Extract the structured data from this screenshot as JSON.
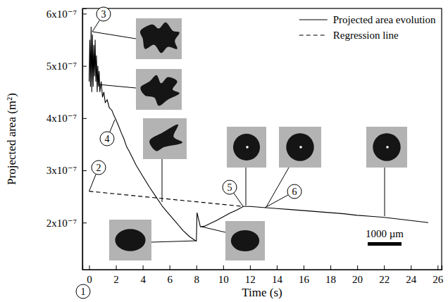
{
  "chart_data": {
    "type": "line",
    "x_label": "Time (s)",
    "y_label": "Projected area (m²)",
    "xlim": [
      -0.5,
      26.3
    ],
    "ylim": [
      1.1e-07,
      6.1e-07
    ],
    "xticks": [
      0,
      2,
      4,
      6,
      8,
      10,
      12,
      14,
      16,
      18,
      20,
      22,
      24,
      26
    ],
    "yticks": [
      {
        "value": 2e-07,
        "label": "2x10⁻⁷"
      },
      {
        "value": 3e-07,
        "label": "3x10⁻⁷"
      },
      {
        "value": 4e-07,
        "label": "4x10⁻⁷"
      },
      {
        "value": 5e-07,
        "label": "5x10⁻⁷"
      },
      {
        "value": 6e-07,
        "label": "6x10⁻⁷"
      }
    ],
    "legend": "top-right",
    "series": [
      {
        "name": "Projected area evolution",
        "color": "#000000",
        "line_style": "solid",
        "x": [
          0,
          0.05,
          0.1,
          0.15,
          0.2,
          0.25,
          0.3,
          0.35,
          0.4,
          0.45,
          0.5,
          0.55,
          0.6,
          0.65,
          0.7,
          0.75,
          0.8,
          0.9,
          1.0,
          1.1,
          1.2,
          1.35,
          1.5,
          1.7,
          1.85,
          2.0,
          2.2,
          2.4,
          2.6,
          2.8,
          3.0,
          3.5,
          4.0,
          4.5,
          5.0,
          5.5,
          6.0,
          6.5,
          7.0,
          7.5,
          7.9,
          8.0,
          8.05,
          8.3,
          8.6,
          9.0,
          9.5,
          10.0,
          10.5,
          11.0,
          11.5,
          12.0,
          13,
          14,
          15,
          16,
          17,
          18,
          19,
          20,
          21,
          22,
          23,
          24,
          25,
          25.3
        ],
        "values": [
          4.7e-07,
          5.5e-07,
          4.6e-07,
          5.75e-07,
          4.5e-07,
          5.6e-07,
          4.6e-07,
          5.4e-07,
          4.8e-07,
          5.5e-07,
          4.7e-07,
          5.2e-07,
          4.5e-07,
          5e-07,
          4.6e-07,
          4.9e-07,
          4.5e-07,
          4.7e-07,
          4.4e-07,
          4.5e-07,
          4.3e-07,
          4.35e-07,
          4.2e-07,
          4.15e-07,
          4.05e-07,
          3.97e-07,
          3.85e-07,
          3.72e-07,
          3.6e-07,
          3.45e-07,
          3.36e-07,
          3.1e-07,
          2.89e-07,
          2.68e-07,
          2.49e-07,
          2.3e-07,
          2.15e-07,
          2e-07,
          1.85e-07,
          1.73e-07,
          1.66e-07,
          1.65e-07,
          2.19e-07,
          1.92e-07,
          1.93e-07,
          1.98e-07,
          2.04e-07,
          2.11e-07,
          2.18e-07,
          2.24e-07,
          2.31e-07,
          2.31e-07,
          2.29e-07,
          2.27e-07,
          2.25e-07,
          2.23e-07,
          2.21e-07,
          2.19e-07,
          2.17e-07,
          2.14e-07,
          2.12e-07,
          2.1e-07,
          2.07e-07,
          2.04e-07,
          2.01e-07,
          2e-07
        ]
      },
      {
        "name": "Regression line",
        "color": "#000000",
        "line_style": "dashed",
        "x": [
          0,
          11.5
        ],
        "values": [
          2.6e-07,
          2.31e-07
        ]
      }
    ],
    "annotations": [
      "1",
      "2",
      "3",
      "4",
      "5",
      "6"
    ],
    "scale_bar": "1000 µm"
  }
}
